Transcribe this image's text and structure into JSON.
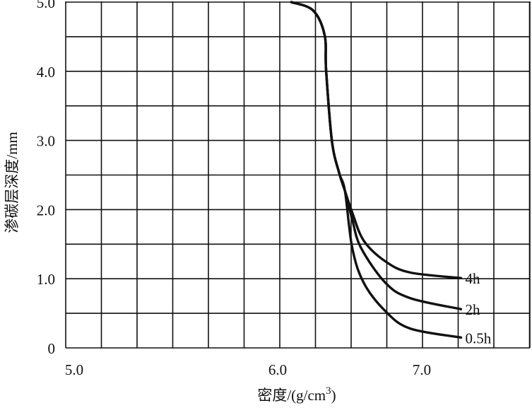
{
  "chart_data": {
    "type": "line",
    "title": "",
    "xlabel": "密度/(g/cm",
    "xlabel_sup": "3",
    "xlabel_end": ")",
    "ylabel": "渗碳层深度/mm",
    "xlim": [
      5.0,
      7.5
    ],
    "ylim": [
      0,
      5.0
    ],
    "grid": true,
    "x_ticks": [
      {
        "value": 5.0,
        "label": "5.0"
      },
      {
        "value": 6.0,
        "label": "6.0"
      },
      {
        "value": 7.0,
        "label": "7.0"
      }
    ],
    "y_ticks": [
      {
        "value": 5.0,
        "label": "5.0"
      },
      {
        "value": 4.0,
        "label": "4.0"
      },
      {
        "value": 3.0,
        "label": "3.0"
      },
      {
        "value": 2.0,
        "label": "2.0"
      },
      {
        "value": 1.0,
        "label": "1.0"
      },
      {
        "value": 0,
        "label": "0"
      }
    ],
    "series": [
      {
        "name": "4h",
        "x": [
          6.08,
          6.23,
          6.31,
          6.32,
          6.36,
          6.41,
          6.45,
          6.5,
          6.58,
          6.73,
          6.9,
          7.25
        ],
        "y": [
          5.0,
          4.88,
          4.52,
          4.01,
          2.99,
          2.53,
          2.27,
          1.96,
          1.55,
          1.25,
          1.09,
          1.01
        ]
      },
      {
        "name": "2h",
        "x": [
          6.08,
          6.23,
          6.31,
          6.32,
          6.36,
          6.41,
          6.45,
          6.5,
          6.56,
          6.73,
          6.9,
          7.25
        ],
        "y": [
          5.0,
          4.88,
          4.52,
          4.01,
          2.99,
          2.53,
          2.27,
          1.86,
          1.45,
          0.94,
          0.72,
          0.56
        ]
      },
      {
        "name": "0.5h",
        "x": [
          6.08,
          6.23,
          6.31,
          6.32,
          6.36,
          6.41,
          6.45,
          6.5,
          6.58,
          6.73,
          6.9,
          7.25
        ],
        "y": [
          5.0,
          4.88,
          4.52,
          4.01,
          2.99,
          2.53,
          2.27,
          1.45,
          0.94,
          0.53,
          0.28,
          0.15
        ]
      }
    ]
  }
}
